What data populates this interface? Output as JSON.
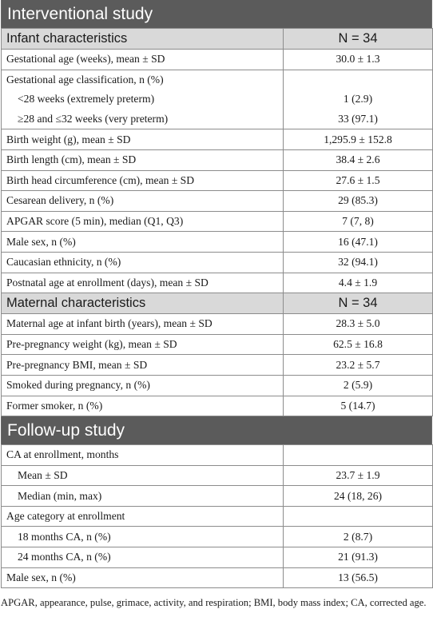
{
  "interventional": {
    "title": "Interventional study",
    "infant": {
      "header": "Infant characteristics",
      "n_label": "N = 34",
      "ga_weeks": {
        "label": "Gestational age (weeks), mean ± SD",
        "value": "30.0 ± 1.3"
      },
      "ga_class": {
        "label": "Gestational age classification, n (%)",
        "sub1": {
          "label": "<28 weeks (extremely preterm)",
          "value": "1 (2.9)"
        },
        "sub2": {
          "label": "≥28 and ≤32 weeks (very preterm)",
          "value": "33 (97.1)"
        }
      },
      "rows": [
        {
          "label": "Birth weight (g), mean ± SD",
          "value": "1,295.9 ± 152.8"
        },
        {
          "label": "Birth length (cm), mean ± SD",
          "value": "38.4 ± 2.6"
        },
        {
          "label": "Birth head circumference (cm), mean ± SD",
          "value": "27.6 ± 1.5"
        },
        {
          "label": "Cesarean delivery, n (%)",
          "value": "29 (85.3)"
        },
        {
          "label": "APGAR score (5 min), median (Q1, Q3)",
          "value": "7 (7, 8)"
        },
        {
          "label": "Male sex, n (%)",
          "value": "16 (47.1)"
        },
        {
          "label": "Caucasian ethnicity, n (%)",
          "value": "32 (94.1)"
        },
        {
          "label": "Postnatal age at enrollment (days), mean ± SD",
          "value": "4.4 ± 1.9"
        }
      ]
    },
    "maternal": {
      "header": "Maternal characteristics",
      "n_label": "N = 34",
      "rows": [
        {
          "label": "Maternal age at infant birth (years), mean ± SD",
          "value": "28.3 ± 5.0"
        },
        {
          "label": "Pre-pregnancy weight (kg), mean ± SD",
          "value": "62.5 ± 16.8"
        },
        {
          "label": "Pre-pregnancy BMI, mean ± SD",
          "value": "23.2 ± 5.7"
        },
        {
          "label": "Smoked during pregnancy, n (%)",
          "value": "2 (5.9)"
        },
        {
          "label": "Former smoker, n (%)",
          "value": "5 (14.7)"
        }
      ]
    }
  },
  "followup": {
    "title": "Follow-up study",
    "ca_label": "CA at enrollment, months",
    "ca_mean": {
      "label": "Mean ± SD",
      "value": "23.7 ± 1.9"
    },
    "ca_median": {
      "label": "Median (min, max)",
      "value": "24 (18, 26)"
    },
    "agecat_label": "Age category at enrollment",
    "agecat_18": {
      "label": "18 months CA, n (%)",
      "value": "2 (8.7)"
    },
    "agecat_24": {
      "label": "24 months CA, n (%)",
      "value": "21 (91.3)"
    },
    "male": {
      "label": "Male sex, n (%)",
      "value": "13 (56.5)"
    }
  },
  "footnote": "APGAR, appearance, pulse, grimace, activity, and respiration; BMI, body mass index; CA, corrected age."
}
